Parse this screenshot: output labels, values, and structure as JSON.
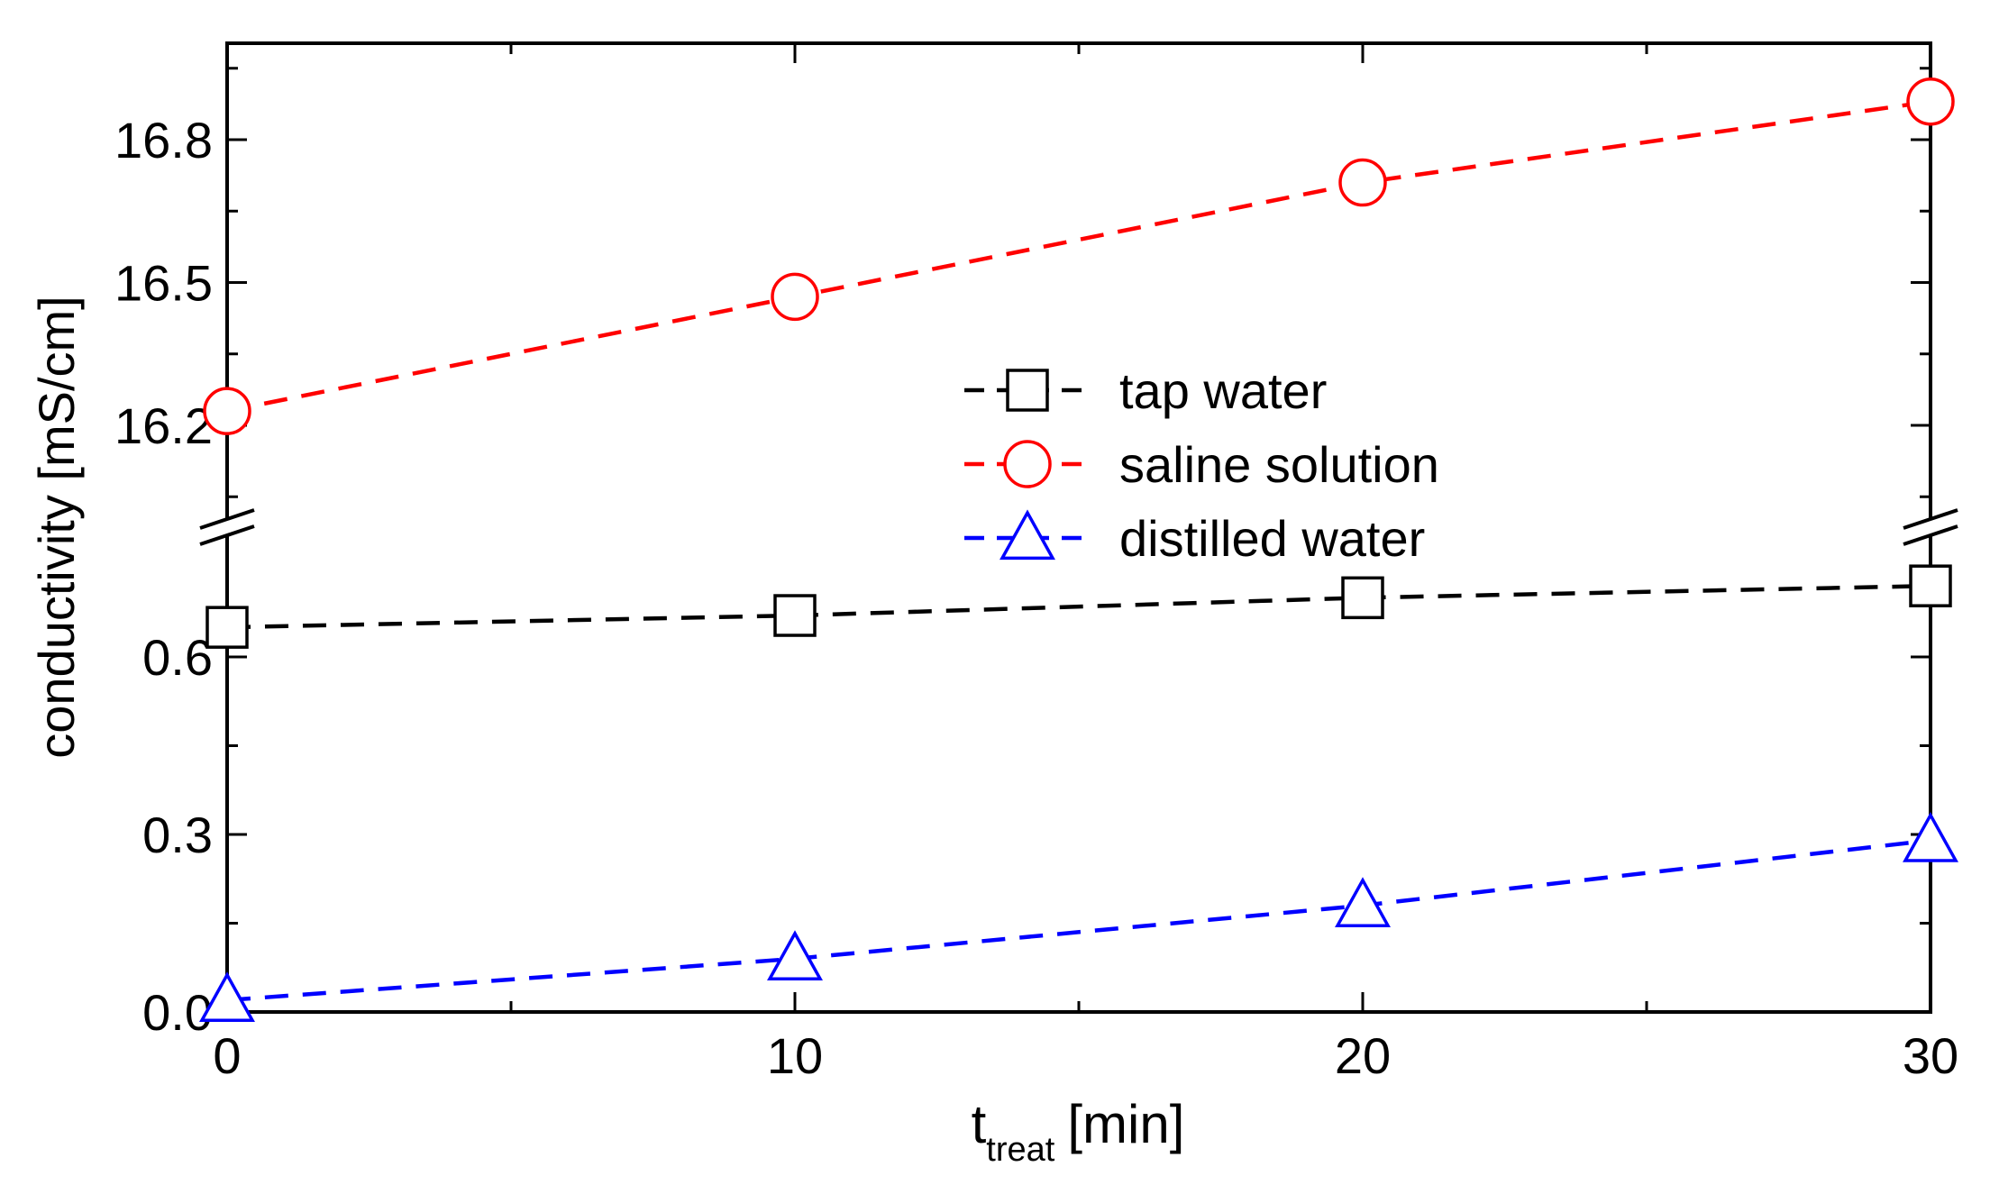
{
  "chart_data": {
    "type": "line",
    "title": "",
    "xlabel": "t",
    "xlabel_sub": "treat",
    "xlabel_unit": "[min]",
    "ylabel": "conductivity [mS/cm]",
    "x": [
      0,
      10,
      20,
      30
    ],
    "xlim": [
      0,
      30
    ],
    "x_ticks": [
      0,
      10,
      20,
      30
    ],
    "x_tick_labels": [
      "0",
      "10",
      "20",
      "30"
    ],
    "y_axis_break": true,
    "y_segments": [
      {
        "name": "lower",
        "range": [
          0.0,
          0.75
        ],
        "ticks": [
          0.0,
          0.3,
          0.6
        ],
        "tick_labels": [
          "0.0",
          "0.3",
          "0.6"
        ]
      },
      {
        "name": "upper",
        "range": [
          16.0,
          17.0
        ],
        "ticks": [
          16.2,
          16.5,
          16.8
        ],
        "tick_labels": [
          "16.2",
          "16.5",
          "16.8"
        ]
      }
    ],
    "legend_position": "center-right",
    "series": [
      {
        "name": "tap water",
        "color": "#000000",
        "marker": "square",
        "segment": "lower",
        "values": [
          0.65,
          0.67,
          0.7,
          0.72
        ]
      },
      {
        "name": "saline solution",
        "color": "#ff0000",
        "marker": "circle",
        "segment": "upper",
        "values": [
          16.23,
          16.47,
          16.71,
          16.88
        ]
      },
      {
        "name": "distilled water",
        "color": "#0000ff",
        "marker": "triangle",
        "segment": "lower",
        "values": [
          0.02,
          0.09,
          0.18,
          0.29
        ]
      }
    ]
  }
}
